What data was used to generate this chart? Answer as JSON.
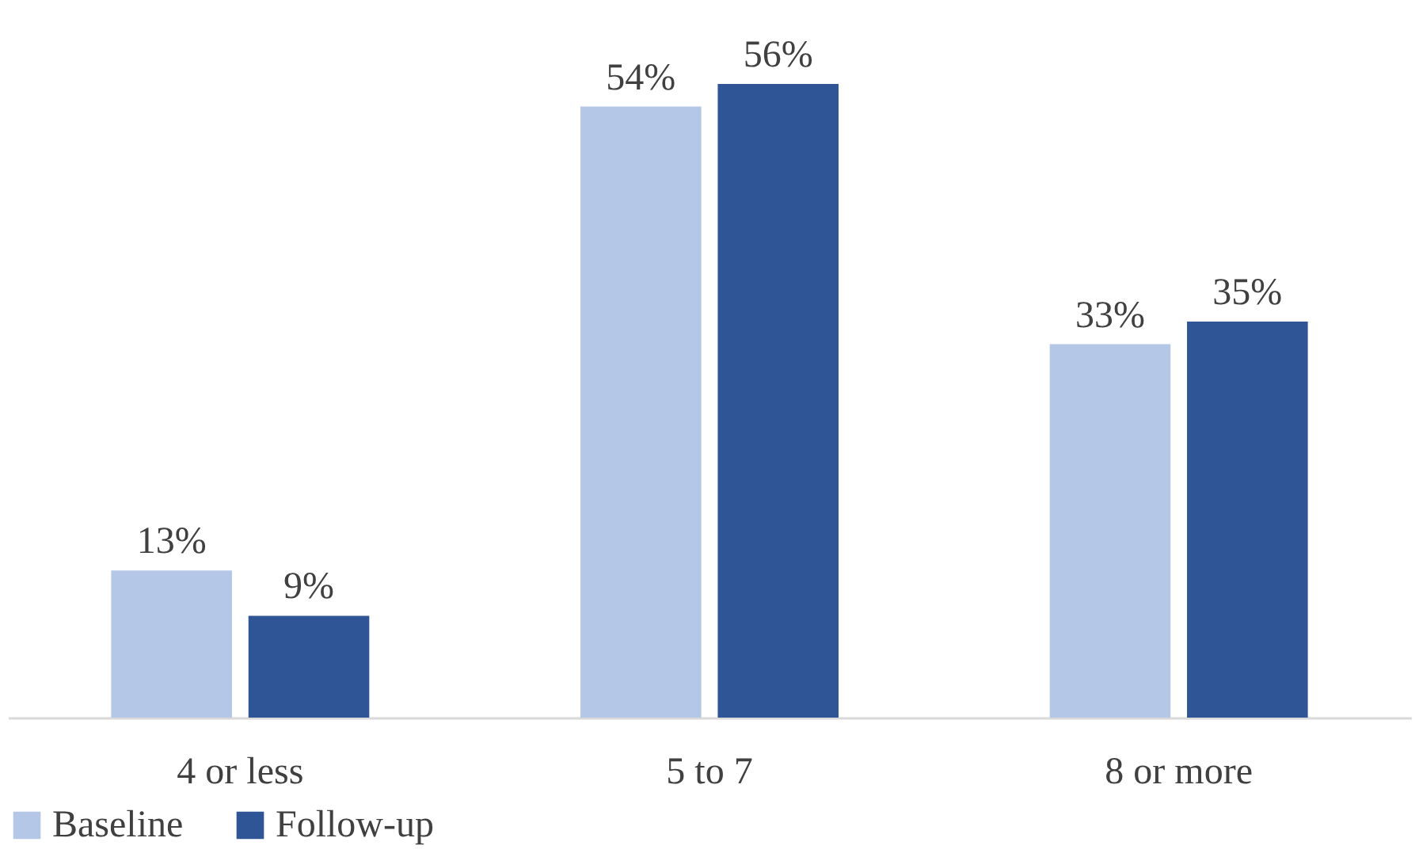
{
  "chart_data": {
    "type": "bar",
    "categories": [
      "4 or less",
      "5 to 7",
      "8 or more"
    ],
    "series": [
      {
        "name": "Baseline",
        "color": "#b4c7e7",
        "values": [
          13,
          54,
          33
        ],
        "value_labels": [
          "13%",
          "54%",
          "33%"
        ]
      },
      {
        "name": "Follow-up",
        "color": "#2f5597",
        "values": [
          9,
          56,
          35
        ],
        "value_labels": [
          "9%",
          "56%",
          "35%"
        ]
      }
    ],
    "legend": "bottom",
    "grid": false
  }
}
